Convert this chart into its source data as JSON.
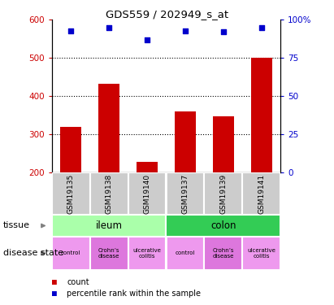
{
  "title": "GDS559 / 202949_s_at",
  "samples": [
    "GSM19135",
    "GSM19138",
    "GSM19140",
    "GSM19137",
    "GSM19139",
    "GSM19141"
  ],
  "counts": [
    320,
    432,
    228,
    360,
    348,
    500
  ],
  "percentiles": [
    93,
    95,
    87,
    93,
    92,
    95
  ],
  "ylim_left": [
    200,
    600
  ],
  "ylim_right": [
    0,
    100
  ],
  "yticks_left": [
    200,
    300,
    400,
    500,
    600
  ],
  "yticks_right": [
    0,
    25,
    50,
    75,
    100
  ],
  "bar_color": "#cc0000",
  "dot_color": "#0000cc",
  "tissue_ileum_color": "#aaffaa",
  "tissue_colon_color": "#33cc55",
  "disease_control_color": "#ee99ee",
  "disease_crohns_color": "#ee99ee",
  "disease_ulcerative_color": "#ee99ee",
  "disease_labels": [
    "control",
    "Crohn’s\ndisease",
    "ulcerative\ncolitis",
    "control",
    "Crohn’s\ndisease",
    "ulcerative\ncolitis"
  ],
  "disease_colors": [
    "#ee99ee",
    "#dd77dd",
    "#ee99ee",
    "#ee99ee",
    "#dd77dd",
    "#ee99ee"
  ],
  "background_color": "#ffffff",
  "label_count": "count",
  "label_percentile": "percentile rank within the sample",
  "sample_bg_color": "#cccccc"
}
